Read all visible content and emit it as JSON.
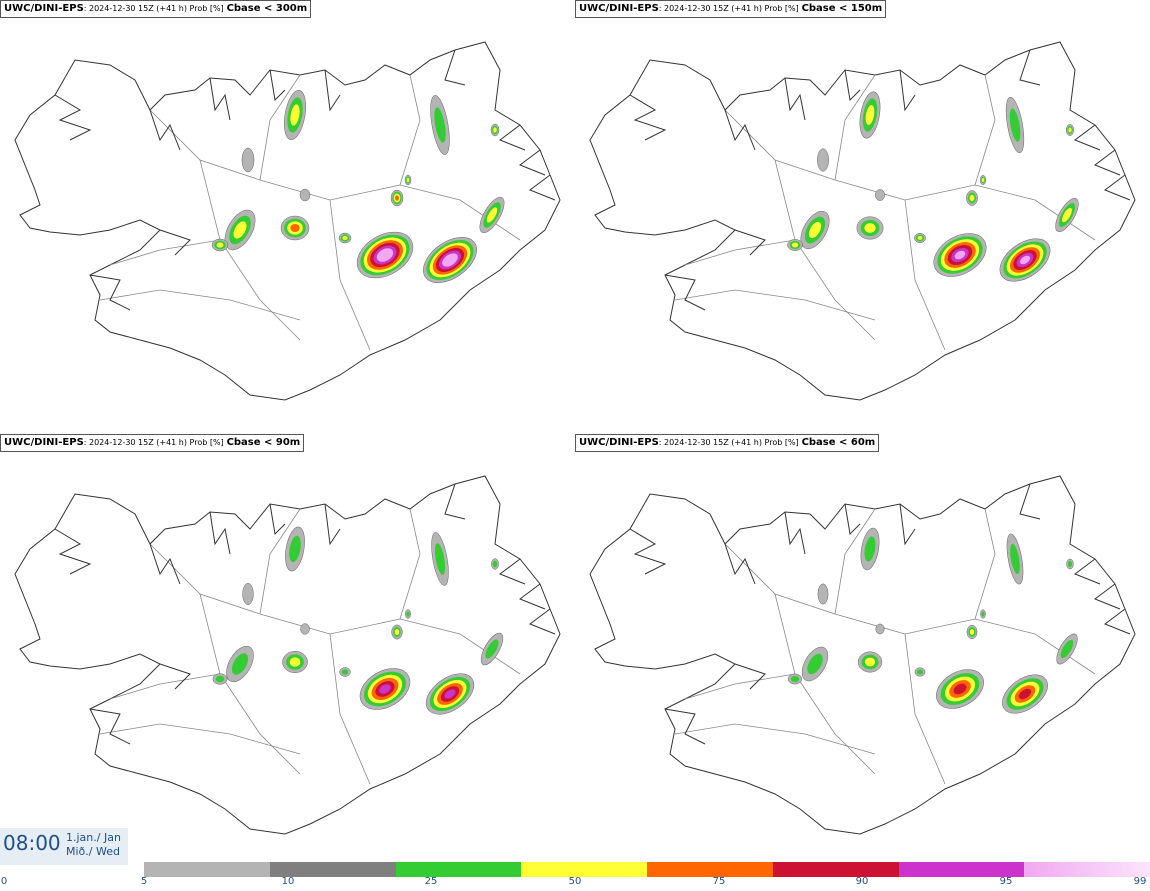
{
  "panels": [
    {
      "model": "UWC/DINI-EPS",
      "meta": ": 2024-12-30 15Z (+41 h) Prob [%]",
      "threshold": "Cbase < 300m",
      "intensity": 1.0
    },
    {
      "model": "UWC/DINI-EPS",
      "meta": ": 2024-12-30 15Z (+41 h) Prob [%]",
      "threshold": "Cbase < 150m",
      "intensity": 0.8
    },
    {
      "model": "UWC/DINI-EPS",
      "meta": ": 2024-12-30 15Z (+41 h) Prob [%]",
      "threshold": "Cbase < 90m",
      "intensity": 0.65
    },
    {
      "model": "UWC/DINI-EPS",
      "meta": ": 2024-12-30 15Z (+41 h) Prob [%]",
      "threshold": "Cbase < 60m",
      "intensity": 0.5
    }
  ],
  "time": {
    "clock": "08:00",
    "date_line1": "1.jan./ Jan",
    "date_line2": "Mið./ Wed"
  },
  "legend": {
    "ticks": [
      "0",
      "5",
      "10",
      "25",
      "50",
      "75",
      "90",
      "95",
      "99"
    ],
    "colors": [
      "#b4b4b4",
      "#7f7f7f",
      "#33cc33",
      "#ffff33",
      "#ff6600",
      "#cc1133",
      "#cc33cc",
      "#f0a8f0"
    ]
  }
}
